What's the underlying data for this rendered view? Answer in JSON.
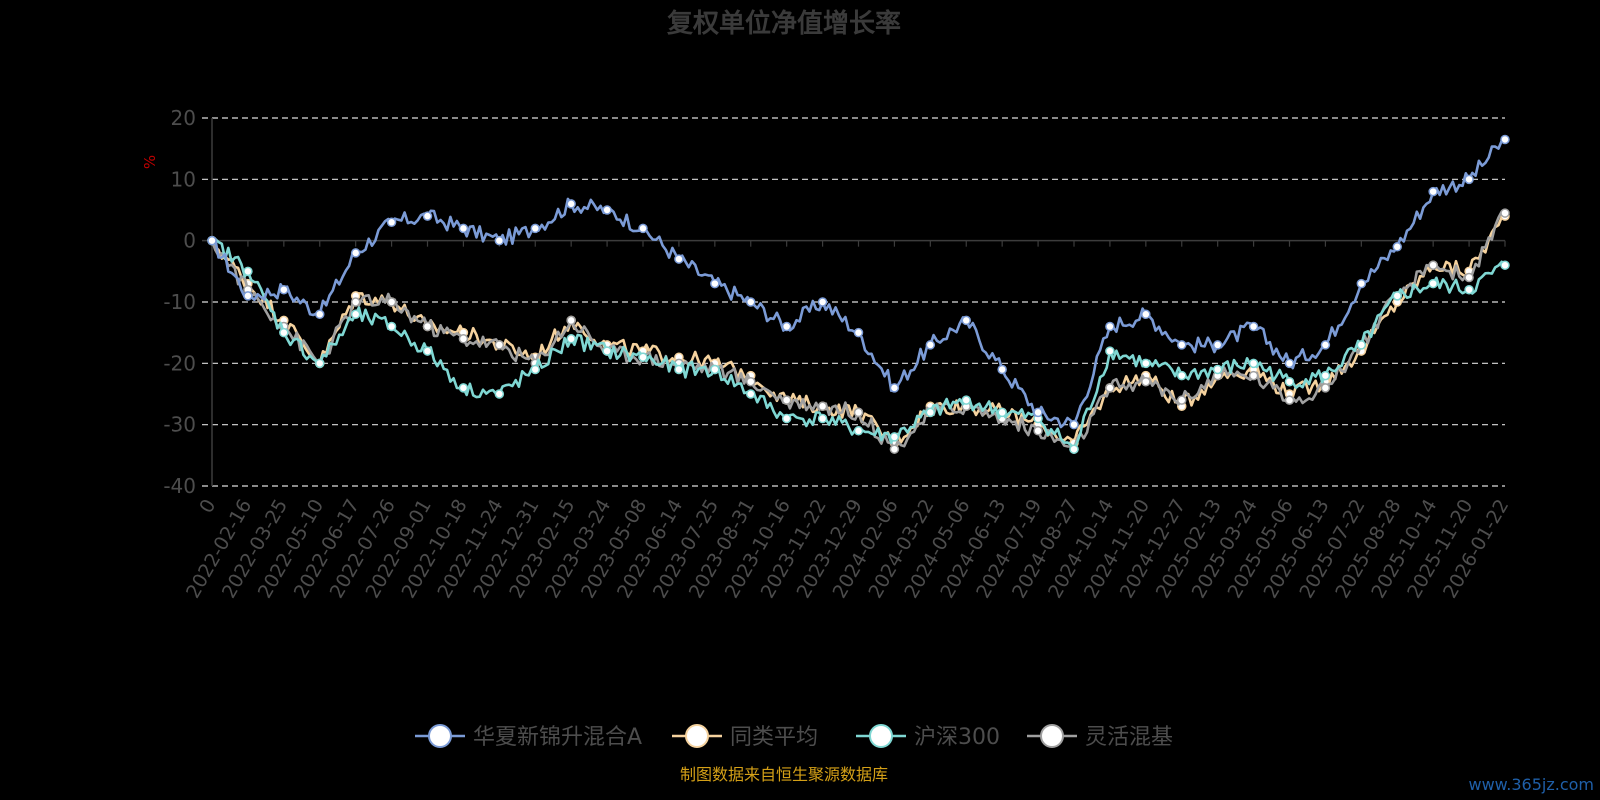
{
  "chart_data": {
    "type": "line",
    "title": "复权单位净值增长率",
    "ylabel": "%",
    "ylim": [
      -40,
      20
    ],
    "yticks": [
      20,
      10,
      0,
      -10,
      -20,
      -30,
      -40
    ],
    "grid": true,
    "legend_position": "bottom",
    "x": [
      "0",
      "2022-02-16",
      "2022-03-25",
      "2022-05-10",
      "2022-06-17",
      "2022-07-26",
      "2022-09-01",
      "2022-10-18",
      "2022-11-24",
      "2022-12-31",
      "2023-02-15",
      "2023-03-24",
      "2023-05-08",
      "2023-06-14",
      "2023-07-25",
      "2023-08-31",
      "2023-10-16",
      "2023-11-22",
      "2023-12-29",
      "2024-02-06",
      "2024-03-22",
      "2024-05-06",
      "2024-06-13",
      "2024-07-19",
      "2024-08-27",
      "2024-10-14",
      "2024-11-20",
      "2024-12-27",
      "2025-02-13",
      "2025-03-24",
      "2025-05-06",
      "2025-06-13",
      "2025-07-22",
      "2025-08-28",
      "2025-10-14",
      "2025-11-20",
      "2026-01-22"
    ],
    "series": [
      {
        "name": "华夏新锦升混合A",
        "color": "#7b9bd6",
        "values": [
          0,
          -9,
          -8,
          -12,
          -2,
          3,
          4,
          2,
          0,
          2,
          6,
          5,
          2,
          -3,
          -7,
          -10,
          -14,
          -10,
          -15,
          -24,
          -17,
          -13,
          -21,
          -28,
          -30,
          -14,
          -12,
          -17,
          -17,
          -14,
          -20,
          -17,
          -7,
          -1,
          8,
          10,
          16.5
        ]
      },
      {
        "name": "同类平均",
        "color": "#f5d29e",
        "values": [
          0,
          -7,
          -13,
          -20,
          -9,
          -10,
          -14,
          -15,
          -17,
          -19,
          -13,
          -17,
          -18,
          -19,
          -20,
          -22,
          -26,
          -27,
          -28,
          -33,
          -27,
          -27,
          -28,
          -30,
          -33,
          -24,
          -22,
          -27,
          -22,
          -21,
          -25,
          -23,
          -18,
          -10,
          -4,
          -5,
          4
        ]
      },
      {
        "name": "沪深300",
        "color": "#7fd7d3",
        "values": [
          0,
          -5,
          -15,
          -20,
          -12,
          -14,
          -18,
          -24,
          -25,
          -21,
          -16,
          -18,
          -19,
          -21,
          -21,
          -25,
          -29,
          -29,
          -31,
          -32,
          -28,
          -26,
          -28,
          -29,
          -34,
          -18,
          -20,
          -22,
          -21,
          -20,
          -23,
          -22,
          -17,
          -9,
          -7,
          -8,
          -4
        ]
      },
      {
        "name": "灵活混基",
        "color": "#a0a0a0",
        "values": [
          0,
          -8,
          -14,
          -20,
          -10,
          -10,
          -14,
          -16,
          -17,
          -20,
          -13,
          -18,
          -19,
          -20,
          -21,
          -23,
          -26,
          -27,
          -28,
          -34,
          -28,
          -27,
          -29,
          -31,
          -34,
          -24,
          -23,
          -26,
          -22,
          -22,
          -26,
          -24,
          -17,
          -9,
          -4,
          -6,
          4.5
        ]
      }
    ]
  },
  "source_text": "制图数据来自恒生聚源数据库",
  "watermark": "www.365jz.com"
}
